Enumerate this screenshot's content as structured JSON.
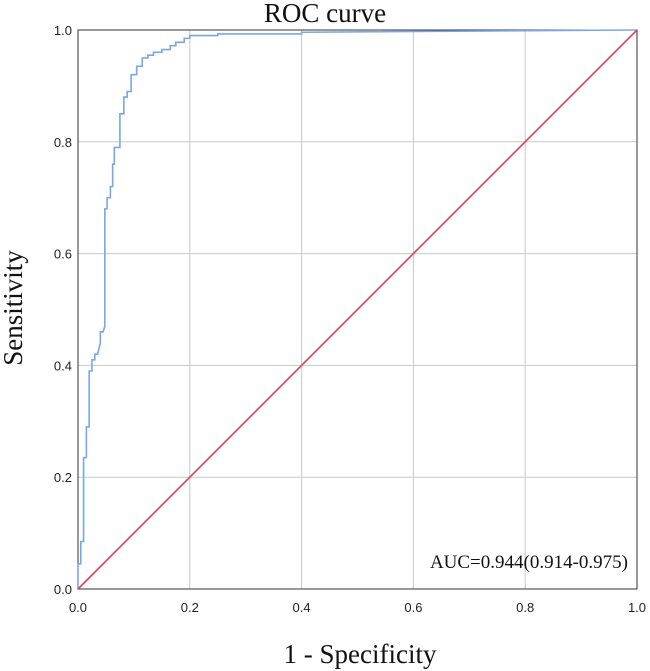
{
  "chart_data": {
    "type": "line",
    "title": "ROC curve",
    "xlabel": "1 - Specificity",
    "ylabel": "Sensitivity",
    "xlim": [
      0,
      1
    ],
    "ylim": [
      0,
      1
    ],
    "x_ticks": [
      "0.0",
      "0.2",
      "0.4",
      "0.6",
      "0.8",
      "1.0"
    ],
    "y_ticks": [
      "0.0",
      "0.2",
      "0.4",
      "0.6",
      "0.8",
      "1.0"
    ],
    "grid": true,
    "annotation": "AUC=0.944(0.914-0.975)",
    "series": [
      {
        "color": "#7aa6e6",
        "x": [
          0.0,
          0.0,
          0.005,
          0.005,
          0.01,
          0.01,
          0.015,
          0.015,
          0.02,
          0.02,
          0.025,
          0.025,
          0.03,
          0.03,
          0.035,
          0.04,
          0.04,
          0.045,
          0.048,
          0.048,
          0.052,
          0.052,
          0.058,
          0.058,
          0.062,
          0.062,
          0.065,
          0.065,
          0.075,
          0.075,
          0.082,
          0.082,
          0.088,
          0.088,
          0.095,
          0.095,
          0.105,
          0.105,
          0.115,
          0.115,
          0.125,
          0.125,
          0.135,
          0.135,
          0.15,
          0.15,
          0.165,
          0.165,
          0.175,
          0.175,
          0.19,
          0.19,
          0.2,
          0.2,
          0.25,
          0.25,
          0.4,
          0.4,
          1.0
        ],
        "y": [
          0.0,
          0.045,
          0.045,
          0.085,
          0.085,
          0.235,
          0.235,
          0.29,
          0.29,
          0.39,
          0.39,
          0.41,
          0.41,
          0.42,
          0.42,
          0.44,
          0.46,
          0.46,
          0.47,
          0.68,
          0.68,
          0.7,
          0.7,
          0.72,
          0.72,
          0.76,
          0.76,
          0.79,
          0.79,
          0.85,
          0.85,
          0.88,
          0.88,
          0.89,
          0.89,
          0.92,
          0.92,
          0.935,
          0.935,
          0.95,
          0.95,
          0.955,
          0.955,
          0.96,
          0.96,
          0.965,
          0.965,
          0.972,
          0.972,
          0.978,
          0.978,
          0.985,
          0.985,
          0.99,
          0.99,
          0.993,
          0.993,
          0.996,
          1.0
        ]
      },
      {
        "color": "#e0405e",
        "x": [
          0,
          1
        ],
        "y": [
          0,
          1
        ]
      }
    ]
  }
}
